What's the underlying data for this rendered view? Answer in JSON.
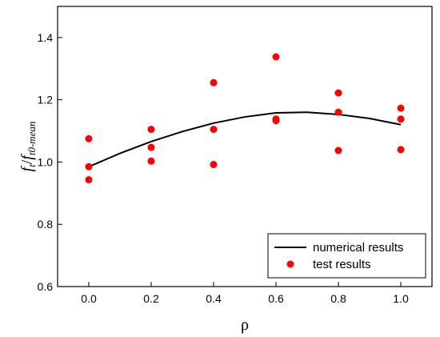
{
  "chart_data": {
    "type": "scatter",
    "xlabel": "ρ",
    "ylabel": {
      "main": "f",
      "main_sub": "t",
      "divider": "/",
      "ref": "f",
      "ref_sub": "t0-mean"
    },
    "xlim": [
      -0.1,
      1.1
    ],
    "ylim": [
      0.6,
      1.5
    ],
    "x_ticks": [
      0.0,
      0.2,
      0.4,
      0.6,
      0.8,
      1.0
    ],
    "x_tick_labels": [
      "0.0",
      "0.2",
      "0.4",
      "0.6",
      "0.8",
      "1.0"
    ],
    "y_ticks": [
      0.6,
      0.8,
      1.0,
      1.2,
      1.4
    ],
    "y_tick_labels": [
      "0.6",
      "0.8",
      "1.0",
      "1.2",
      "1.4"
    ],
    "grid": false,
    "legend_position": "bottom-right",
    "series": [
      {
        "name": "numerical results",
        "type": "line",
        "color": "#000000",
        "x": [
          0.0,
          0.1,
          0.2,
          0.3,
          0.4,
          0.5,
          0.6,
          0.7,
          0.8,
          0.9,
          1.0
        ],
        "y": [
          0.985,
          1.028,
          1.066,
          1.098,
          1.125,
          1.145,
          1.158,
          1.16,
          1.153,
          1.14,
          1.12
        ]
      },
      {
        "name": "test results",
        "type": "scatter",
        "color": "#ff0000",
        "x": [
          0.0,
          0.0,
          0.0,
          0.2,
          0.2,
          0.2,
          0.4,
          0.4,
          0.4,
          0.6,
          0.6,
          0.6,
          0.8,
          0.8,
          0.8,
          1.0,
          1.0,
          1.0
        ],
        "y": [
          1.075,
          0.985,
          0.943,
          1.105,
          1.047,
          1.003,
          1.255,
          1.105,
          0.992,
          1.338,
          1.138,
          1.133,
          1.222,
          1.16,
          1.037,
          1.173,
          1.138,
          1.04
        ]
      }
    ]
  }
}
